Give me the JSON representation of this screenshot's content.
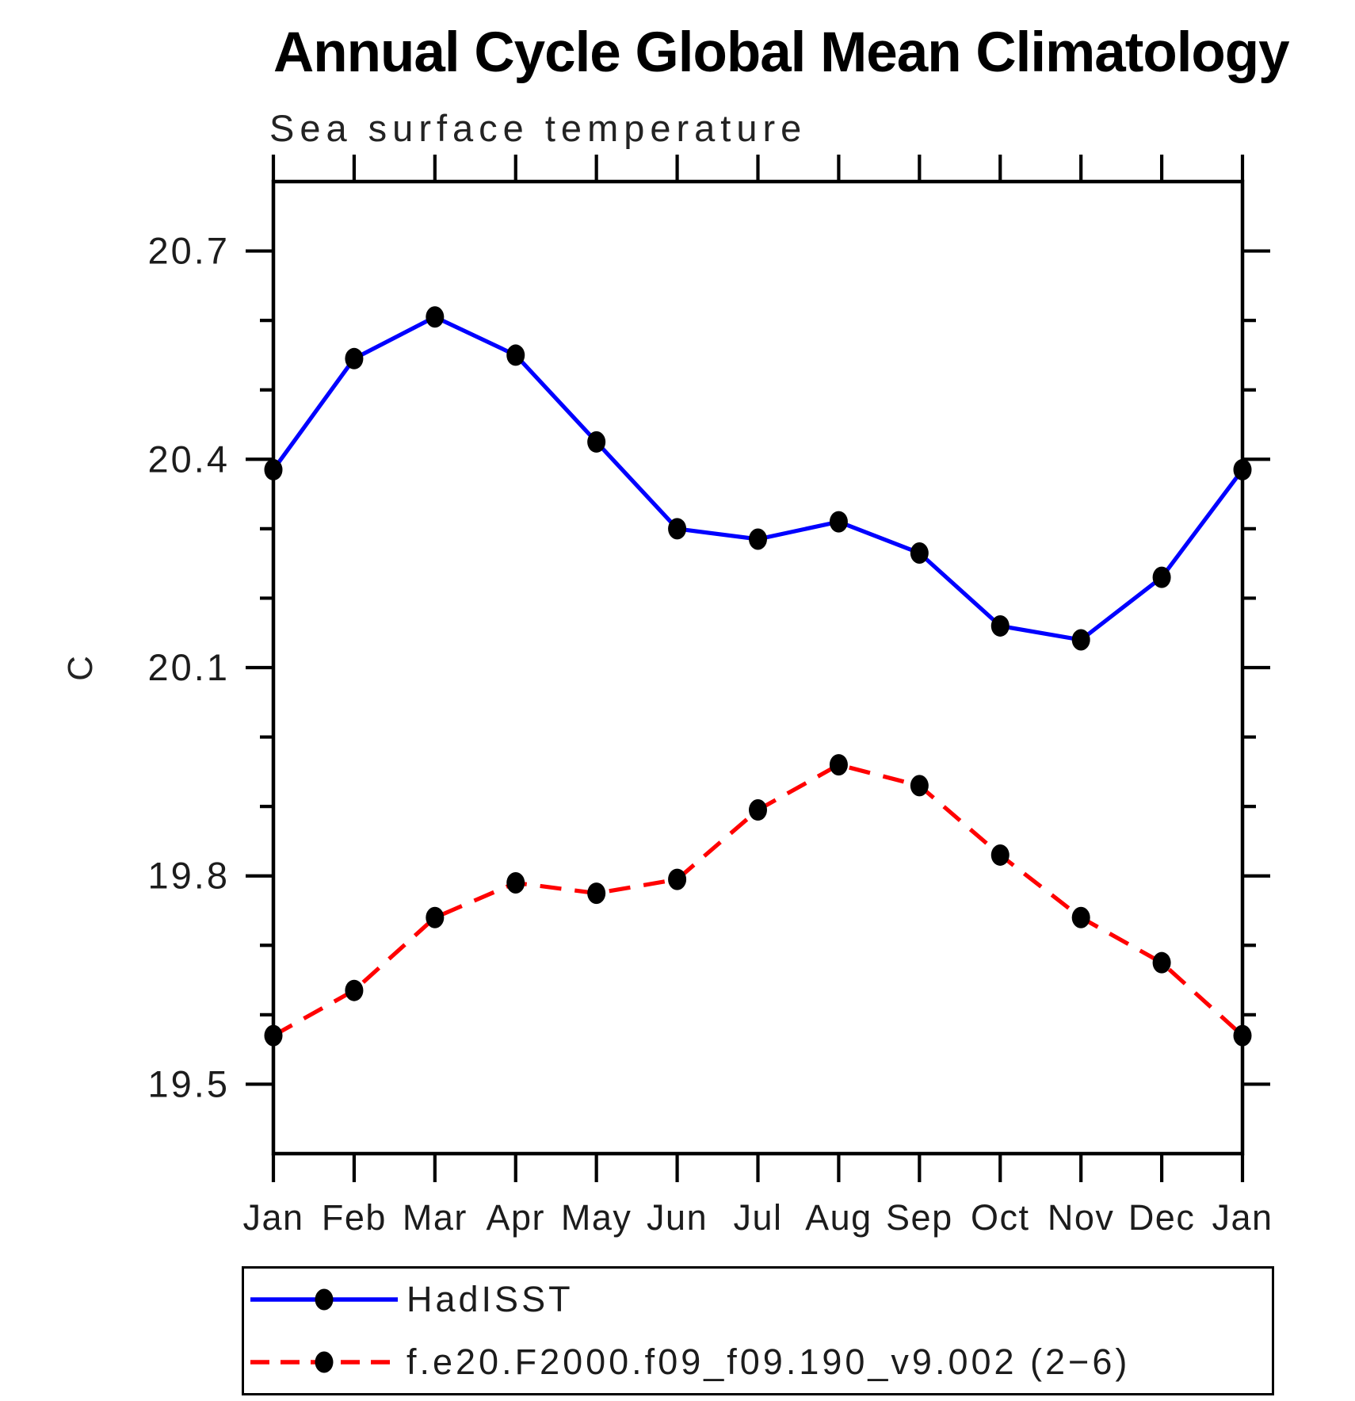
{
  "chart_data": {
    "type": "line",
    "title": "Annual Cycle Global Mean Climatology",
    "subtitle": "Sea surface temperature",
    "ylabel": "C",
    "x_tick_labels": [
      "Jan",
      "Feb",
      "Mar",
      "Apr",
      "May",
      "Jun",
      "Jul",
      "Aug",
      "Sep",
      "Oct",
      "Nov",
      "Dec",
      "Jan"
    ],
    "ylim": [
      19.4,
      20.8
    ],
    "y_major_ticks": [
      19.5,
      19.8,
      20.1,
      20.4,
      20.7
    ],
    "y_tick_labels": [
      "19.5",
      "19.8",
      "20.1",
      "20.4",
      "20.7"
    ],
    "y_minor_ticks": [
      19.6,
      19.7,
      19.9,
      20.0,
      20.2,
      20.3,
      20.5,
      20.6
    ],
    "grid": false,
    "legend_position": "bottom-left",
    "marker_color": "#000000",
    "axis_color": "#000000",
    "series": [
      {
        "name": "HadISST",
        "color": "#0000ff",
        "line_style": "solid",
        "marker": "filled-black-circle",
        "values": [
          20.385,
          20.545,
          20.605,
          20.55,
          20.425,
          20.3,
          20.285,
          20.31,
          20.265,
          20.16,
          20.14,
          20.23,
          20.385
        ]
      },
      {
        "name": "f.e20.F2000.f09_f09.190_v9.002 (2−6)",
        "color": "#ff0000",
        "line_style": "dashed",
        "marker": "filled-black-circle",
        "values": [
          19.57,
          19.635,
          19.74,
          19.79,
          19.775,
          19.795,
          19.895,
          19.96,
          19.93,
          19.83,
          19.74,
          19.675,
          19.57
        ]
      }
    ]
  }
}
